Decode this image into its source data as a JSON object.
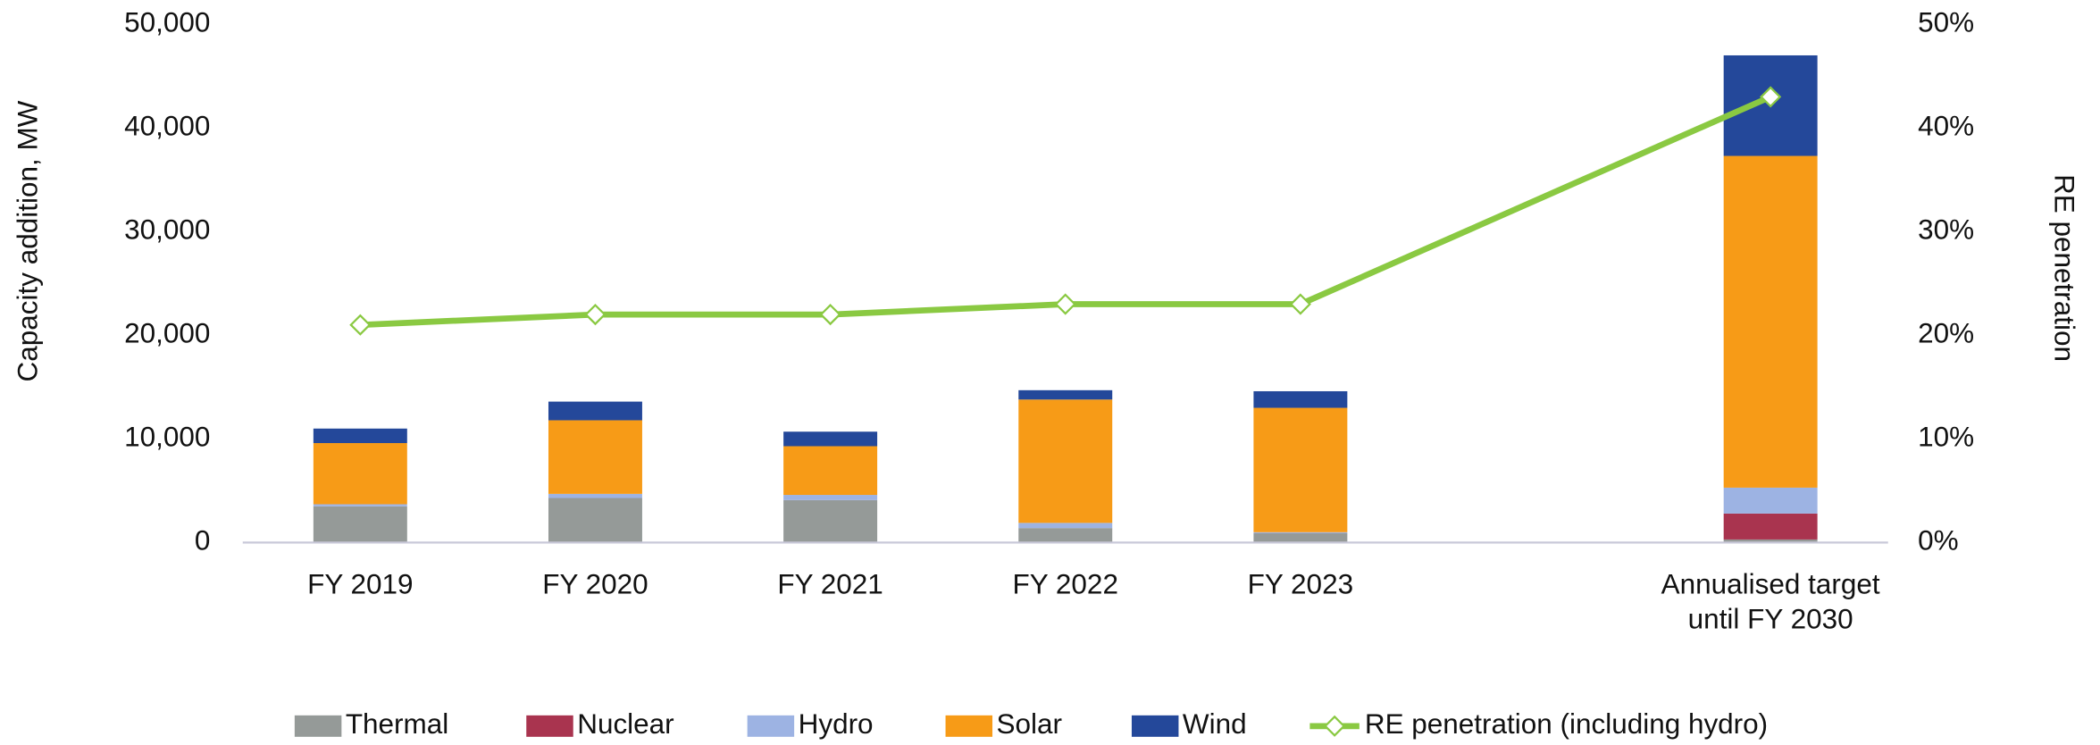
{
  "chart_data": {
    "type": "bar",
    "categories": [
      "FY 2019",
      "FY 2020",
      "FY 2021",
      "FY 2022",
      "FY 2023",
      null,
      "Annualised target until FY 2030"
    ],
    "y_label": "Capacity addition, MW",
    "y2_label": "RE penetration",
    "ylim": [
      0,
      50000
    ],
    "yticks": [
      0,
      {
        "value": 10000,
        "label": "10,000"
      },
      {
        "value": 20000,
        "label": "20,000"
      },
      {
        "value": 30000,
        "label": "30,000"
      },
      {
        "value": 40000,
        "label": "40,000"
      },
      {
        "value": 50000,
        "label": "50,000"
      }
    ],
    "y2lim": [
      0,
      50
    ],
    "y2ticks": [
      {
        "value": 0,
        "label": "0%"
      },
      {
        "value": 10,
        "label": "10%"
      },
      {
        "value": 20,
        "label": "20%"
      },
      {
        "value": 30,
        "label": "30%"
      },
      {
        "value": 40,
        "label": "40%"
      },
      {
        "value": 50,
        "label": "50%"
      }
    ],
    "series": [
      {
        "name": "Thermal",
        "color": "#959a98",
        "type": "bar",
        "values": [
          3500,
          4300,
          4100,
          1400,
          900,
          null,
          300
        ]
      },
      {
        "name": "Nuclear",
        "color": "#a9344f",
        "type": "bar",
        "values": [
          0,
          0,
          0,
          0,
          0,
          null,
          2500
        ]
      },
      {
        "name": "Hydro",
        "color": "#9db3e3",
        "type": "bar",
        "values": [
          200,
          400,
          500,
          500,
          100,
          null,
          2500
        ]
      },
      {
        "name": "Solar",
        "color": "#f79b17",
        "type": "bar",
        "values": [
          5900,
          7100,
          4700,
          11900,
          12000,
          null,
          32000
        ]
      },
      {
        "name": "Wind",
        "color": "#24489a",
        "type": "bar",
        "values": [
          1400,
          1800,
          1400,
          900,
          1600,
          null,
          9700
        ]
      },
      {
        "name": "RE penetration (including hydro)",
        "color": "#8ac942",
        "type": "line",
        "axis": "y2",
        "values": [
          21,
          22,
          22,
          23,
          23,
          null,
          43
        ]
      }
    ],
    "legend": "bottom"
  }
}
